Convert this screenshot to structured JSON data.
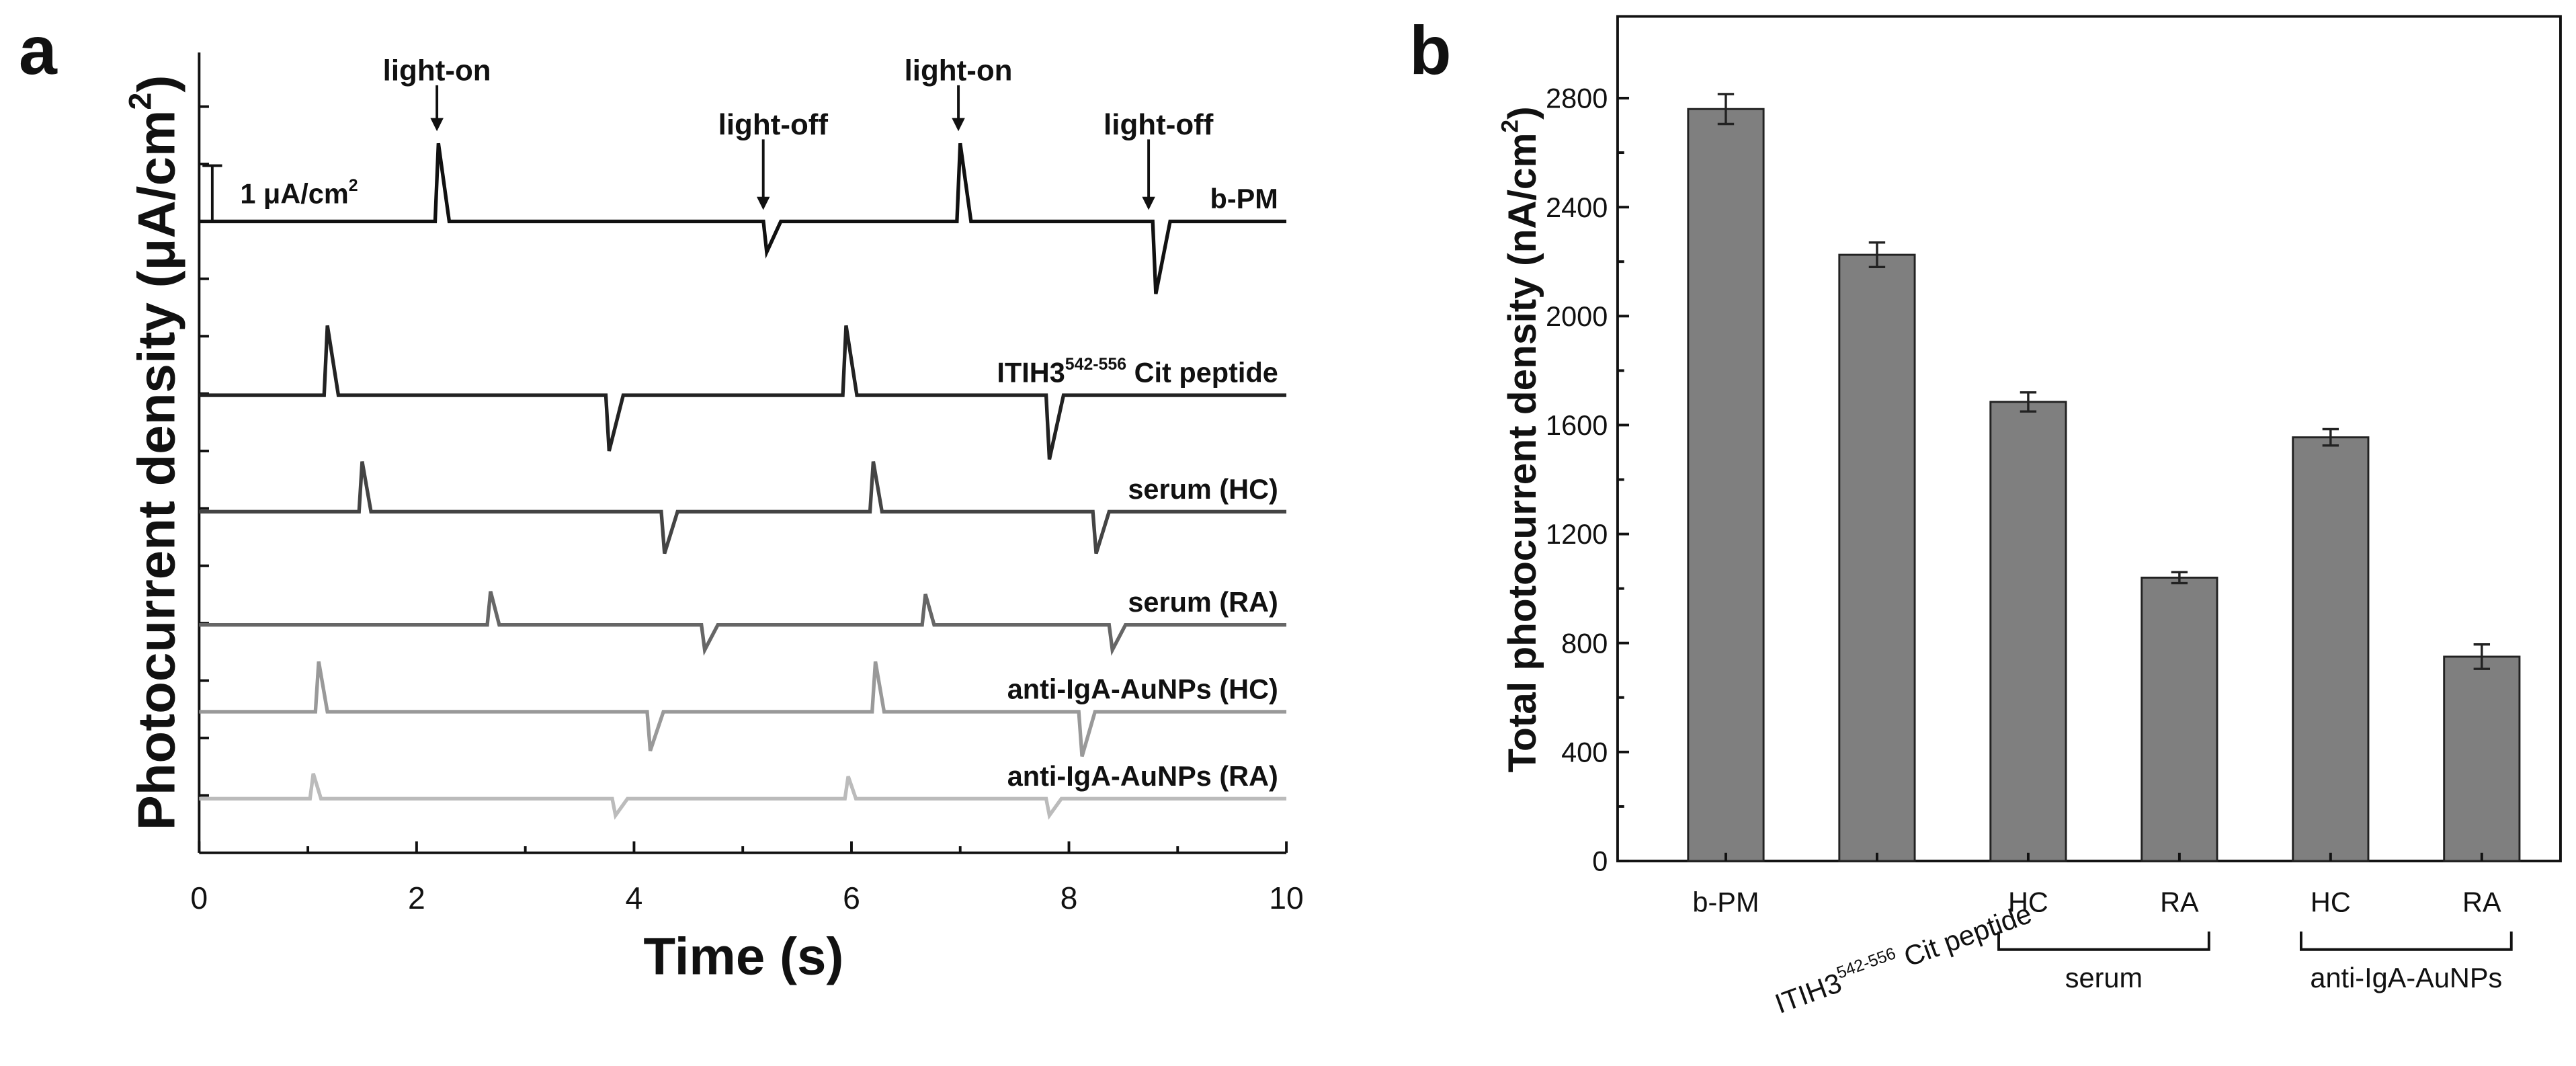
{
  "chart_data": [
    {
      "type": "line",
      "panel": "a",
      "xlabel": "Time (s)",
      "ylabel": [
        "Photocurrent density (μA/cm",
        "2",
        ")"
      ],
      "scale_bar": [
        "1 μA/cm",
        "2"
      ],
      "annotations": [
        "light-on",
        "light-off",
        "light-on",
        "light-off"
      ],
      "xlim": [
        0,
        10
      ],
      "xticks": [
        0,
        2,
        4,
        6,
        8,
        10
      ],
      "series": [
        {
          "name": [
            "b-PM"
          ],
          "color": "#111111",
          "x": [
            0,
            2.17,
            2.2,
            2.3,
            5.19,
            5.22,
            5.35,
            6.97,
            7.0,
            7.1,
            8.77,
            8.8,
            8.93,
            10
          ],
          "values": [
            0,
            0,
            1.4,
            0,
            0,
            -0.55,
            0,
            0,
            1.4,
            0,
            0,
            -1.3,
            0,
            0
          ]
        },
        {
          "name": [
            "ITIH3",
            "542-556",
            " Cit peptide"
          ],
          "color": "#222222",
          "x": [
            0,
            1.15,
            1.18,
            1.28,
            3.74,
            3.77,
            3.9,
            5.92,
            5.95,
            6.05,
            7.79,
            7.82,
            7.95,
            10
          ],
          "values": [
            0,
            0,
            1.25,
            0,
            0,
            -1.0,
            0,
            0,
            1.25,
            0,
            0,
            -1.15,
            0,
            0
          ]
        },
        {
          "name": [
            "serum (HC)"
          ],
          "color": "#444444",
          "x": [
            0,
            1.47,
            1.5,
            1.58,
            4.25,
            4.28,
            4.4,
            6.17,
            6.2,
            6.28,
            8.22,
            8.25,
            8.37,
            10
          ],
          "values": [
            0,
            0,
            0.9,
            0,
            0,
            -0.75,
            0,
            0,
            0.9,
            0,
            0,
            -0.75,
            0,
            0
          ]
        },
        {
          "name": [
            "serum (RA)"
          ],
          "color": "#666666",
          "x": [
            0,
            2.65,
            2.68,
            2.76,
            4.62,
            4.65,
            4.77,
            6.65,
            6.68,
            6.76,
            8.37,
            8.4,
            8.52,
            10
          ],
          "values": [
            0,
            0,
            0.6,
            0,
            0,
            -0.45,
            0,
            0,
            0.55,
            0,
            0,
            -0.45,
            0,
            0
          ]
        },
        {
          "name": [
            "anti-IgA-AuNPs (HC)"
          ],
          "color": "#999999",
          "x": [
            0,
            1.07,
            1.1,
            1.18,
            4.12,
            4.15,
            4.27,
            6.19,
            6.22,
            6.3,
            8.09,
            8.12,
            8.24,
            10
          ],
          "values": [
            0,
            0,
            0.9,
            0,
            0,
            -0.7,
            0,
            0,
            0.9,
            0,
            0,
            -0.8,
            0,
            0
          ]
        },
        {
          "name": [
            "anti-IgA-AuNPs (RA)"
          ],
          "color": "#bbbbbb",
          "x": [
            0,
            1.02,
            1.05,
            1.12,
            3.8,
            3.83,
            3.94,
            5.94,
            5.97,
            6.04,
            7.79,
            7.82,
            7.93,
            10
          ],
          "values": [
            0,
            0,
            0.45,
            0,
            0,
            -0.3,
            0,
            0,
            0.4,
            0,
            0,
            -0.3,
            0,
            0
          ]
        }
      ]
    },
    {
      "type": "bar",
      "panel": "b",
      "ylabel": [
        "Total photocurrent density (nA/cm",
        "2",
        ")"
      ],
      "categories": [
        [
          "b-PM"
        ],
        [
          "ITIH3",
          "542-556",
          " Cit peptide"
        ],
        [
          "HC"
        ],
        [
          "RA"
        ],
        [
          "HC"
        ],
        [
          "RA"
        ]
      ],
      "groups": [
        "serum",
        "anti-IgA-AuNPs"
      ],
      "values": [
        2760,
        2225,
        1685,
        1040,
        1555,
        750
      ],
      "errors": [
        55,
        45,
        35,
        20,
        30,
        45
      ],
      "color": "#7f7f7f",
      "ylim": [
        0,
        3100
      ],
      "yticks": [
        0,
        400,
        800,
        1200,
        1600,
        2000,
        2400,
        2800
      ]
    }
  ]
}
